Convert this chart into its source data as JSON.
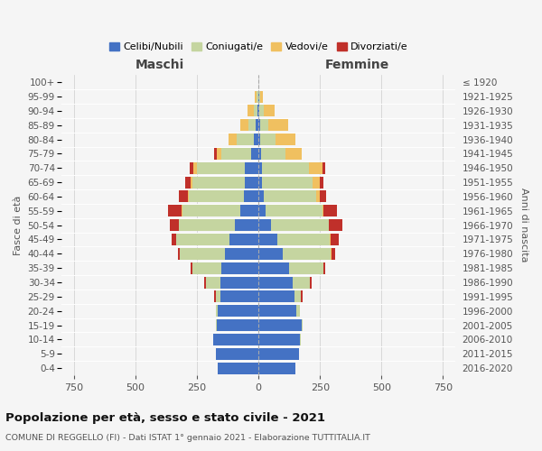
{
  "age_groups": [
    "0-4",
    "5-9",
    "10-14",
    "15-19",
    "20-24",
    "25-29",
    "30-34",
    "35-39",
    "40-44",
    "45-49",
    "50-54",
    "55-59",
    "60-64",
    "65-69",
    "70-74",
    "75-79",
    "80-84",
    "85-89",
    "90-94",
    "95-99",
    "100+"
  ],
  "birth_years": [
    "2016-2020",
    "2011-2015",
    "2006-2010",
    "2001-2005",
    "1996-2000",
    "1991-1995",
    "1986-1990",
    "1981-1985",
    "1976-1980",
    "1971-1975",
    "1966-1970",
    "1961-1965",
    "1956-1960",
    "1951-1955",
    "1946-1950",
    "1941-1945",
    "1936-1940",
    "1931-1935",
    "1926-1930",
    "1921-1925",
    "≤ 1920"
  ],
  "maschi": {
    "celibi": [
      165,
      175,
      185,
      170,
      165,
      155,
      155,
      150,
      135,
      120,
      95,
      75,
      60,
      55,
      55,
      30,
      18,
      10,
      5,
      2,
      0
    ],
    "coniugati": [
      0,
      0,
      1,
      2,
      8,
      20,
      60,
      120,
      185,
      215,
      230,
      235,
      225,
      215,
      195,
      120,
      70,
      30,
      15,
      5,
      0
    ],
    "vedove": [
      0,
      0,
      0,
      0,
      2,
      0,
      0,
      0,
      0,
      0,
      0,
      2,
      3,
      5,
      15,
      20,
      35,
      35,
      25,
      8,
      0
    ],
    "divorziate": [
      0,
      0,
      0,
      0,
      0,
      5,
      5,
      5,
      8,
      20,
      35,
      55,
      35,
      25,
      15,
      10,
      0,
      0,
      0,
      0,
      0
    ]
  },
  "femmine": {
    "nubili": [
      150,
      165,
      170,
      175,
      155,
      145,
      140,
      125,
      100,
      75,
      50,
      30,
      20,
      15,
      15,
      10,
      5,
      5,
      3,
      2,
      0
    ],
    "coniugate": [
      0,
      0,
      1,
      3,
      12,
      28,
      70,
      140,
      195,
      215,
      235,
      230,
      215,
      205,
      190,
      100,
      65,
      35,
      18,
      5,
      0
    ],
    "vedove": [
      0,
      0,
      0,
      0,
      0,
      0,
      0,
      0,
      2,
      2,
      2,
      5,
      15,
      30,
      55,
      65,
      80,
      80,
      45,
      12,
      0
    ],
    "divorziate": [
      0,
      0,
      0,
      0,
      0,
      5,
      5,
      5,
      15,
      35,
      55,
      55,
      25,
      15,
      10,
      0,
      0,
      0,
      0,
      0,
      0
    ]
  },
  "colors": {
    "celibi": "#4472c4",
    "coniugati": "#c5d5a0",
    "vedove": "#f0c060",
    "divorziate": "#c0302a"
  },
  "xlim": 800,
  "xticks": [
    -750,
    -500,
    -250,
    0,
    250,
    500,
    750
  ],
  "title": "Popolazione per età, sesso e stato civile - 2021",
  "subtitle": "COMUNE DI REGGELLO (FI) - Dati ISTAT 1° gennaio 2021 - Elaborazione TUTTITALIA.IT",
  "label_maschi": "Maschi",
  "label_femmine": "Femmine",
  "ylabel_left": "Fasce di età",
  "ylabel_right": "Anni di nascita",
  "bg_color": "#f5f5f5",
  "grid_color": "#cccccc",
  "legend": [
    "Celibi/Nubili",
    "Coniugati/e",
    "Vedovi/e",
    "Divorziati/e"
  ]
}
